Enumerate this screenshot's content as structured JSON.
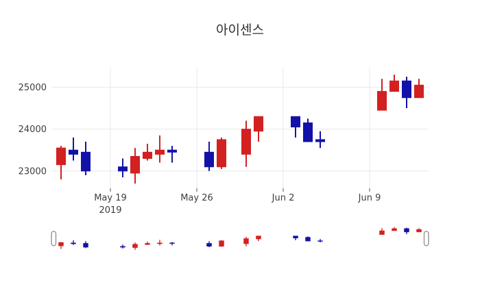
{
  "colors": {
    "up": "#d32020",
    "down": "#1212a8",
    "grid": "#e8e8e8",
    "tick_mark": "#555555",
    "axis_text": "#3d3d3d",
    "title_text": "#2f2f2f",
    "slider_handle_border": "#8c8c8c",
    "background": "#ffffff"
  },
  "chart_data": {
    "type": "candlestick",
    "title": "아이센스",
    "increasing_color": "#d32020",
    "decreasing_color": "#1212a8",
    "grid": "on",
    "y_ticks": [
      23000,
      24000,
      25000
    ],
    "ylim": [
      22590,
      25480
    ],
    "x_ticks": [
      {
        "date": "2019-05-19",
        "label": "May 19",
        "sublabel": "2019"
      },
      {
        "date": "2019-05-26",
        "label": "May 26",
        "sublabel": ""
      },
      {
        "date": "2019-06-02",
        "label": "Jun 2",
        "sublabel": ""
      },
      {
        "date": "2019-06-09",
        "label": "Jun 9",
        "sublabel": ""
      }
    ],
    "rangeslider": {
      "visible": true,
      "ylim": [
        22700,
        25300
      ]
    },
    "candles": [
      {
        "date": "2019-05-15",
        "open": 23150,
        "high": 23600,
        "low": 22800,
        "close": 23550
      },
      {
        "date": "2019-05-16",
        "open": 23500,
        "high": 23800,
        "low": 23250,
        "close": 23400
      },
      {
        "date": "2019-05-17",
        "open": 23450,
        "high": 23700,
        "low": 22900,
        "close": 23000
      },
      {
        "date": "2019-05-20",
        "open": 23100,
        "high": 23300,
        "low": 22850,
        "close": 23000
      },
      {
        "date": "2019-05-21",
        "open": 22950,
        "high": 23550,
        "low": 22700,
        "close": 23350
      },
      {
        "date": "2019-05-22",
        "open": 23300,
        "high": 23650,
        "low": 23250,
        "close": 23450
      },
      {
        "date": "2019-05-23",
        "open": 23400,
        "high": 23850,
        "low": 23200,
        "close": 23500
      },
      {
        "date": "2019-05-24",
        "open": 23500,
        "high": 23600,
        "low": 23200,
        "close": 23450
      },
      {
        "date": "2019-05-27",
        "open": 23450,
        "high": 23700,
        "low": 23000,
        "close": 23100
      },
      {
        "date": "2019-05-28",
        "open": 23100,
        "high": 23800,
        "low": 23050,
        "close": 23750
      },
      {
        "date": "2019-05-30",
        "open": 23400,
        "high": 24200,
        "low": 23100,
        "close": 24000
      },
      {
        "date": "2019-05-31",
        "open": 23950,
        "high": 24300,
        "low": 23700,
        "close": 24300
      },
      {
        "date": "2019-06-03",
        "open": 24300,
        "high": 24300,
        "low": 23800,
        "close": 24050
      },
      {
        "date": "2019-06-04",
        "open": 24150,
        "high": 24250,
        "low": 23700,
        "close": 23700
      },
      {
        "date": "2019-06-05",
        "open": 23750,
        "high": 23950,
        "low": 23550,
        "close": 23700
      },
      {
        "date": "2019-06-10",
        "open": 24450,
        "high": 25200,
        "low": 24450,
        "close": 24900
      },
      {
        "date": "2019-06-11",
        "open": 24900,
        "high": 25300,
        "low": 24900,
        "close": 25150
      },
      {
        "date": "2019-06-12",
        "open": 25150,
        "high": 25250,
        "low": 24500,
        "close": 24750
      },
      {
        "date": "2019-06-13",
        "open": 24750,
        "high": 25200,
        "low": 24750,
        "close": 25050
      }
    ]
  }
}
